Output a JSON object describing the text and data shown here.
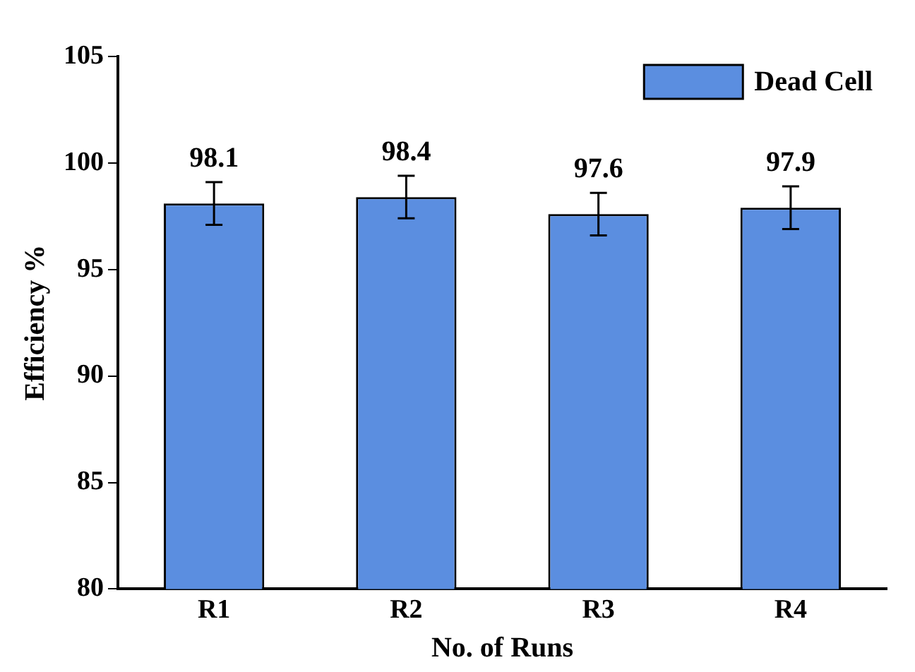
{
  "chart_data": {
    "type": "bar",
    "xlabel": "No. of Runs",
    "ylabel": "Efficiency %",
    "categories": [
      "R1",
      "R2",
      "R3",
      "R4"
    ],
    "series": [
      {
        "name": "Dead Cell",
        "color": "#5b8ee0",
        "values": [
          98.1,
          98.4,
          97.6,
          97.9
        ],
        "errors": [
          1,
          1,
          1,
          1
        ]
      }
    ],
    "ylim": [
      80,
      105
    ],
    "yticks": [
      80,
      85,
      90,
      95,
      100,
      105
    ],
    "data_labels": true,
    "legend": "top right",
    "grid": false
  }
}
